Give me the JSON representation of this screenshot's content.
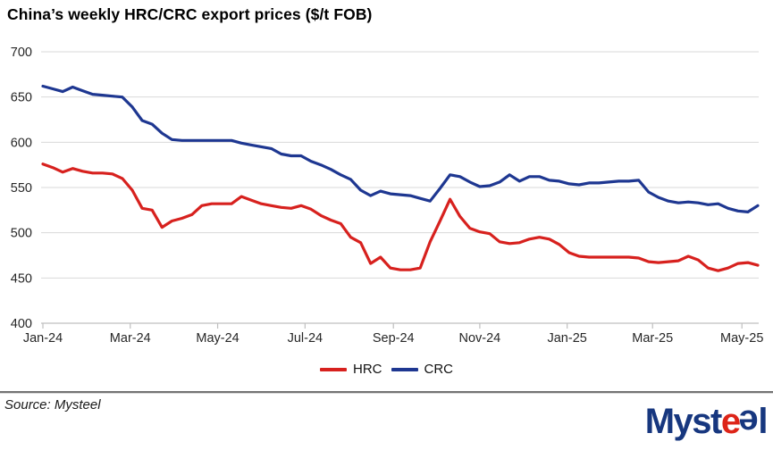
{
  "title": "China’s weekly HRC/CRC export prices ($/t FOB)",
  "source_note": "Source: Mysteel",
  "logo": {
    "part1": "Myst",
    "e1": "e",
    "e2": "e",
    "part2": "l",
    "navy": "#17377f",
    "red": "#dd2418"
  },
  "chart_data": {
    "type": "line",
    "title": "China’s weekly HRC/CRC export prices ($/t FOB)",
    "xlabel": "",
    "ylabel": "",
    "ylim": [
      400,
      700
    ],
    "yticks": [
      400,
      450,
      500,
      550,
      600,
      650,
      700
    ],
    "grid": true,
    "grid_color": "#d9d9d9",
    "axis_color": "#bfbfbf",
    "label_color": "#262626",
    "legend_position": "bottom-center",
    "x_unit": "weekly, Jan-2024 to May-2025",
    "xticks": [
      {
        "label": "Jan-24",
        "week": 0
      },
      {
        "label": "Mar-24",
        "week": 8.8
      },
      {
        "label": "May-24",
        "week": 17.6
      },
      {
        "label": "Jul-24",
        "week": 26.4
      },
      {
        "label": "Sep-24",
        "week": 35.3
      },
      {
        "label": "Nov-24",
        "week": 44.0
      },
      {
        "label": "Jan-25",
        "week": 52.8
      },
      {
        "label": "Mar-25",
        "week": 61.4
      },
      {
        "label": "May-25",
        "week": 70.4
      }
    ],
    "series": [
      {
        "name": "HRC",
        "color": "#d7211e",
        "values": [
          576,
          572,
          567,
          571,
          568,
          566,
          566,
          565,
          560,
          547,
          527,
          525,
          506,
          513,
          516,
          520,
          530,
          532,
          532,
          532,
          540,
          536,
          532,
          530,
          528,
          527,
          530,
          526,
          519,
          514,
          510,
          495,
          489,
          466,
          473,
          461,
          459,
          459,
          461,
          490,
          513,
          537,
          518,
          505,
          501,
          499,
          490,
          488,
          489,
          493,
          495,
          493,
          487,
          478,
          474,
          473,
          473,
          473,
          473,
          473,
          472,
          468,
          467,
          468,
          469,
          474,
          470,
          461,
          458,
          461,
          466,
          467,
          464
        ]
      },
      {
        "name": "CRC",
        "color": "#1e3791",
        "values": [
          662,
          659,
          656,
          661,
          657,
          653,
          652,
          651,
          650,
          639,
          624,
          620,
          610,
          603,
          602,
          602,
          602,
          602,
          602,
          602,
          599,
          597,
          595,
          593,
          587,
          585,
          585,
          579,
          575,
          570,
          564,
          559,
          547,
          541,
          546,
          543,
          542,
          541,
          538,
          535,
          549,
          564,
          562,
          556,
          551,
          552,
          556,
          564,
          557,
          562,
          562,
          558,
          557,
          554,
          553,
          555,
          555,
          556,
          557,
          557,
          558,
          545,
          539,
          535,
          533,
          534,
          533,
          531,
          532,
          527,
          524,
          523,
          530
        ]
      }
    ]
  }
}
